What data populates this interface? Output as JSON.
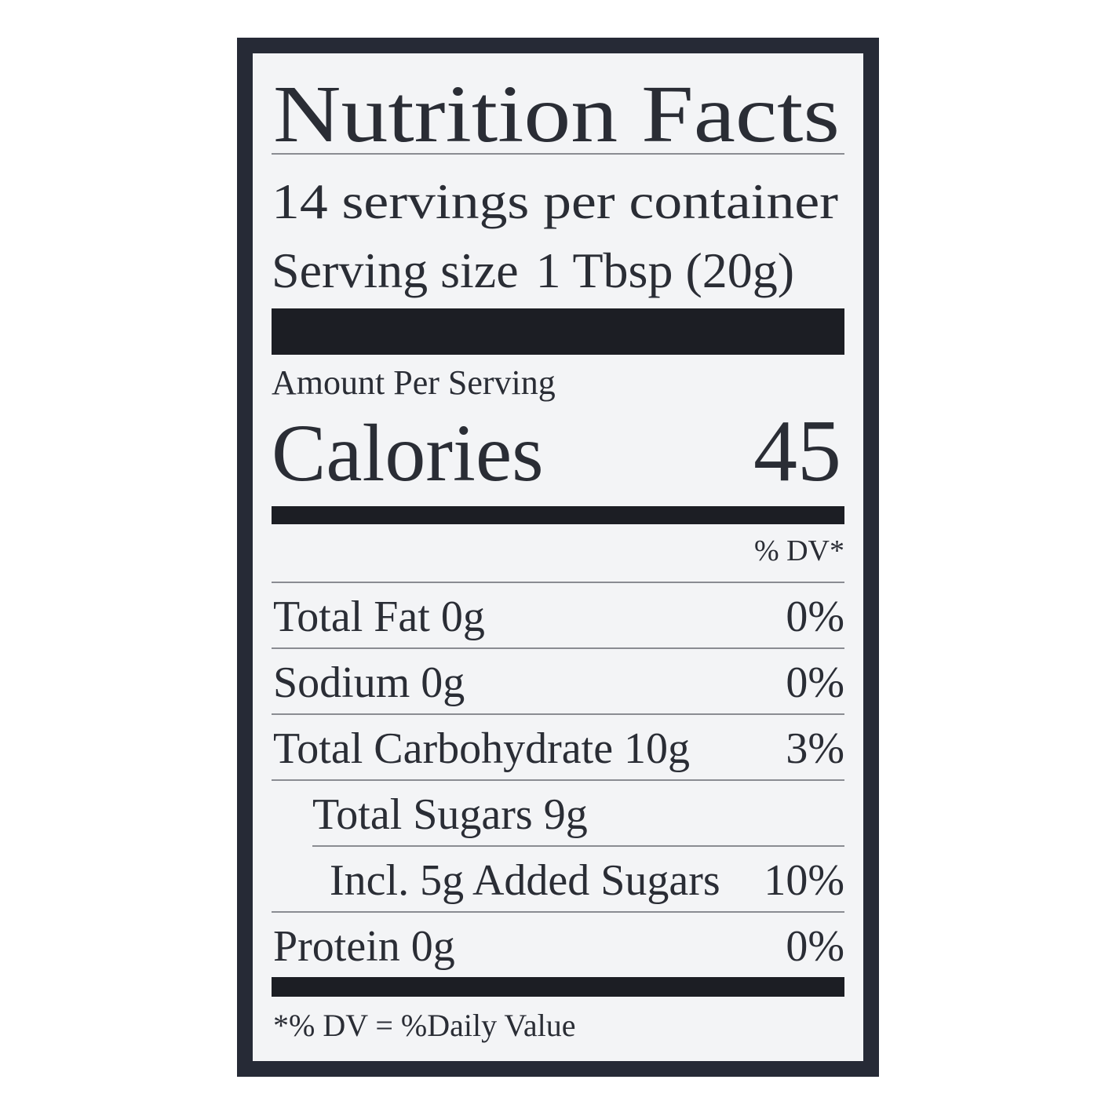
{
  "label": {
    "title": "Nutrition Facts",
    "servings": "14 servings per container",
    "serving_size_label": "Serving size",
    "serving_size": "1 Tbsp (20g)",
    "amount_per_serving": "Amount Per Serving",
    "calories_label": "Calories",
    "calories": 45,
    "dv_header": "% DV*",
    "nutrients": [
      {
        "name": "Total Fat",
        "amount": "0g",
        "dv": "0%"
      },
      {
        "name": "Sodium",
        "amount": "0g",
        "dv": "0%"
      },
      {
        "name": "Total Carbohydrate",
        "amount": "10g",
        "dv": "3%"
      },
      {
        "name": "Total Sugars",
        "amount": "9g"
      },
      {
        "name": "Incl. 5g Added Sugars",
        "dv": "10%"
      },
      {
        "name": "Protein",
        "amount": "0g",
        "dv": "0%"
      }
    ],
    "footnote": "*% DV = %Daily Value"
  }
}
